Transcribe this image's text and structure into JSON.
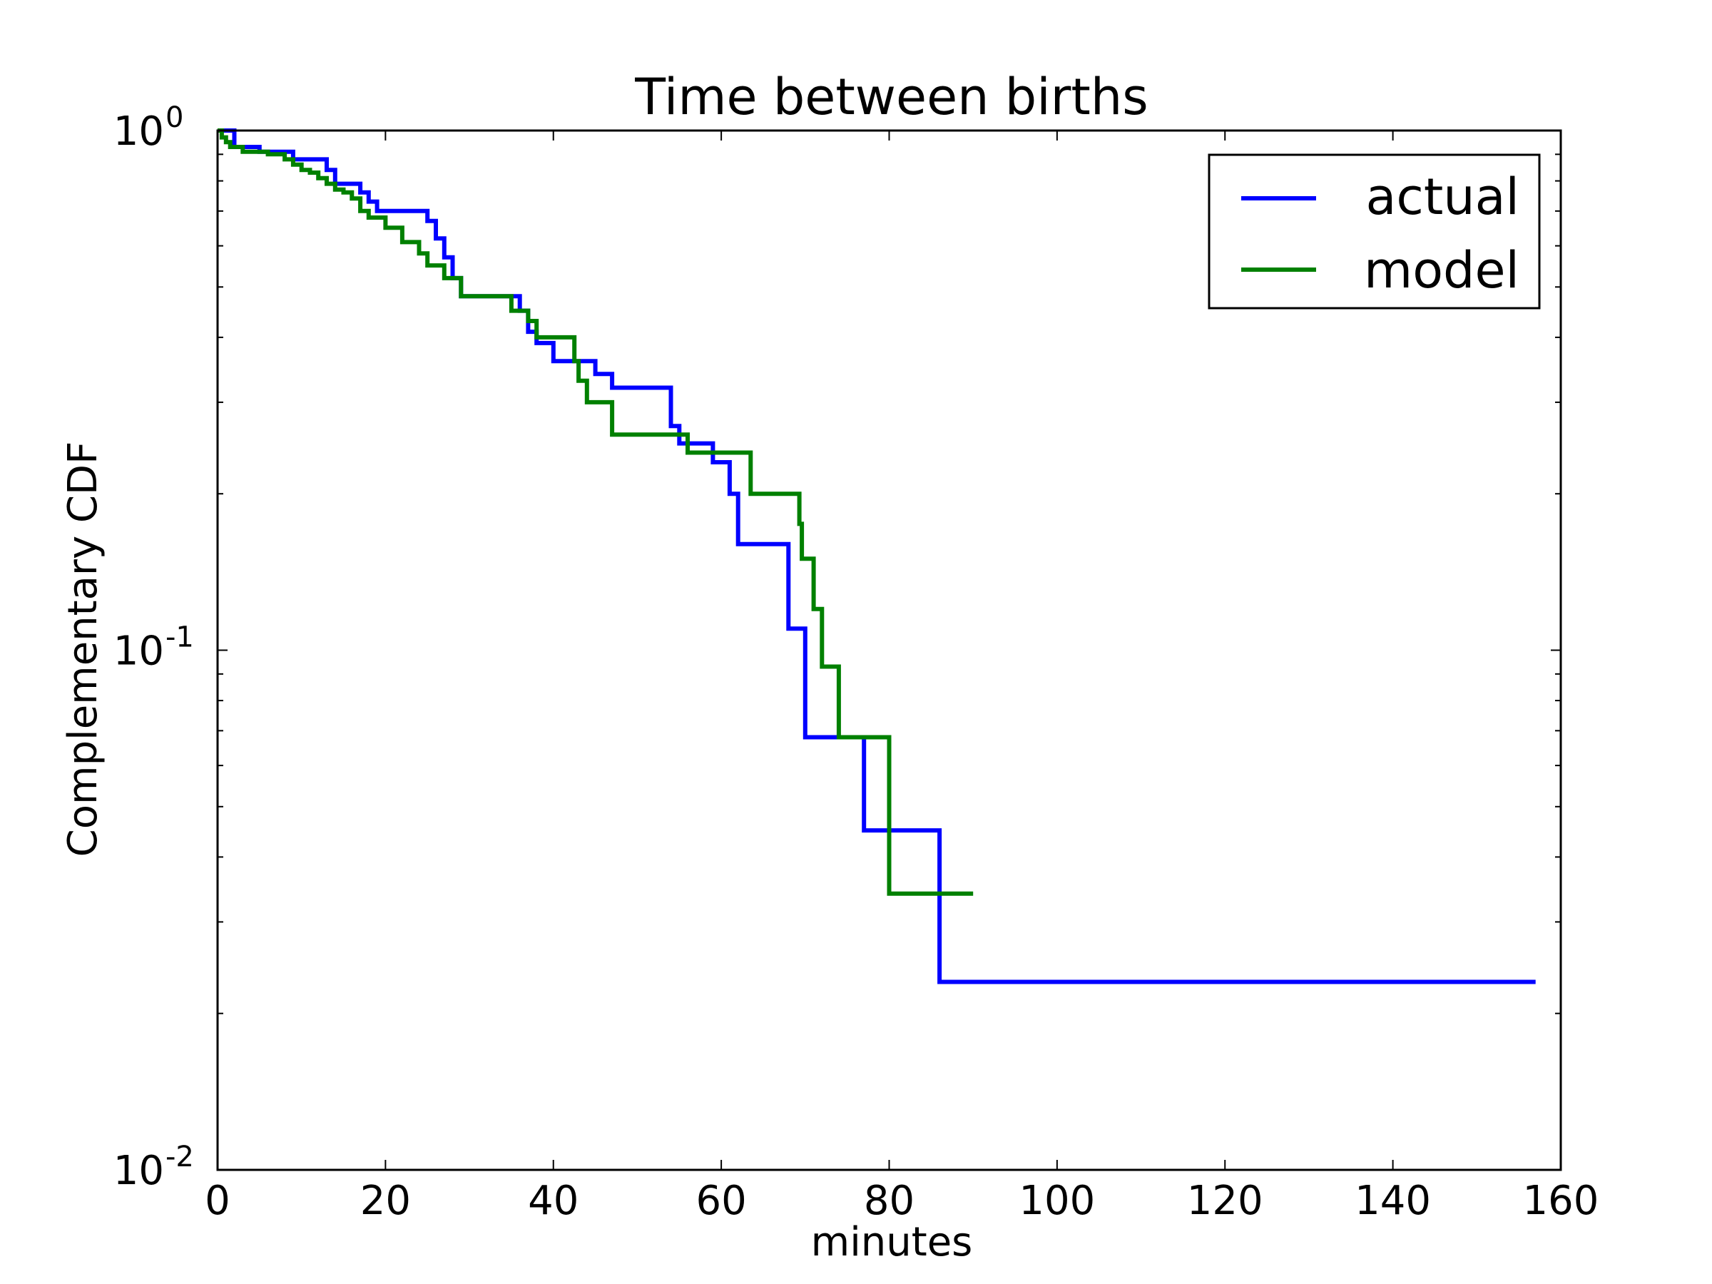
{
  "chart_data": {
    "type": "line",
    "title": "Time between births",
    "xlabel": "minutes",
    "ylabel": "Complementary CDF",
    "xlim": [
      0,
      160
    ],
    "ylim": [
      0.01,
      1
    ],
    "yscale": "log",
    "grid": false,
    "legend_position": "top-right",
    "x_ticks": [
      {
        "value": 0,
        "label": "0"
      },
      {
        "value": 20,
        "label": "20"
      },
      {
        "value": 40,
        "label": "40"
      },
      {
        "value": 60,
        "label": "60"
      },
      {
        "value": 80,
        "label": "80"
      },
      {
        "value": 100,
        "label": "100"
      },
      {
        "value": 120,
        "label": "120"
      },
      {
        "value": 140,
        "label": "140"
      },
      {
        "value": 160,
        "label": "160"
      }
    ],
    "y_ticks": [
      {
        "value": 0.01,
        "base": "10",
        "exp": "-2"
      },
      {
        "value": 0.1,
        "base": "10",
        "exp": "-1"
      },
      {
        "value": 1,
        "base": "10",
        "exp": "0"
      }
    ],
    "series": [
      {
        "name": "actual",
        "color": "#0000ff",
        "x": [
          0,
          2,
          2,
          5,
          5,
          9,
          9,
          13,
          13,
          14,
          14,
          17,
          17,
          18,
          18,
          19,
          19,
          25,
          25,
          26,
          26,
          27,
          27,
          28,
          28,
          29,
          29,
          36,
          36,
          37,
          37,
          38,
          38,
          40,
          40,
          45,
          45,
          47,
          47,
          54,
          54,
          55,
          55,
          59,
          59,
          61,
          61,
          62,
          62,
          68,
          68,
          70,
          70,
          77,
          77,
          86,
          86,
          157
        ],
        "y": [
          1.0,
          1.0,
          0.93,
          0.93,
          0.91,
          0.91,
          0.88,
          0.88,
          0.84,
          0.84,
          0.79,
          0.79,
          0.76,
          0.76,
          0.73,
          0.73,
          0.7,
          0.7,
          0.67,
          0.67,
          0.62,
          0.62,
          0.57,
          0.57,
          0.52,
          0.52,
          0.48,
          0.48,
          0.45,
          0.45,
          0.41,
          0.41,
          0.39,
          0.39,
          0.36,
          0.36,
          0.34,
          0.34,
          0.32,
          0.32,
          0.27,
          0.27,
          0.25,
          0.25,
          0.23,
          0.23,
          0.2,
          0.2,
          0.16,
          0.16,
          0.11,
          0.11,
          0.068,
          0.068,
          0.045,
          0.045,
          0.023,
          0.023
        ]
      },
      {
        "name": "model",
        "color": "#008000",
        "x": [
          0,
          0.5,
          0.5,
          1,
          1,
          1.5,
          1.5,
          3,
          3,
          6,
          6,
          8,
          8,
          9,
          9,
          10,
          10,
          11,
          11,
          12,
          12,
          13,
          13,
          14,
          14,
          15,
          15,
          16,
          16,
          17,
          17,
          18,
          18,
          20,
          20,
          22,
          22,
          24,
          24,
          25,
          25,
          27,
          27,
          29,
          29,
          35,
          35,
          37,
          37,
          38,
          38,
          42.5,
          42.5,
          43,
          43,
          44,
          44,
          47,
          47,
          56,
          56,
          63.5,
          63.5,
          69.3,
          69.3,
          69.6,
          69.6,
          71,
          71,
          72,
          72,
          74,
          74,
          80,
          80,
          90
        ],
        "y": [
          1.0,
          1.0,
          0.97,
          0.97,
          0.95,
          0.95,
          0.93,
          0.93,
          0.91,
          0.91,
          0.9,
          0.9,
          0.88,
          0.88,
          0.86,
          0.86,
          0.84,
          0.84,
          0.83,
          0.83,
          0.81,
          0.81,
          0.79,
          0.79,
          0.77,
          0.77,
          0.76,
          0.76,
          0.74,
          0.74,
          0.7,
          0.7,
          0.68,
          0.68,
          0.65,
          0.65,
          0.61,
          0.61,
          0.58,
          0.58,
          0.55,
          0.55,
          0.52,
          0.52,
          0.48,
          0.48,
          0.45,
          0.45,
          0.43,
          0.43,
          0.4,
          0.4,
          0.36,
          0.36,
          0.33,
          0.33,
          0.3,
          0.3,
          0.26,
          0.26,
          0.24,
          0.24,
          0.2,
          0.2,
          0.175,
          0.175,
          0.15,
          0.15,
          0.12,
          0.12,
          0.093,
          0.093,
          0.068,
          0.068,
          0.034,
          0.034
        ]
      }
    ]
  }
}
